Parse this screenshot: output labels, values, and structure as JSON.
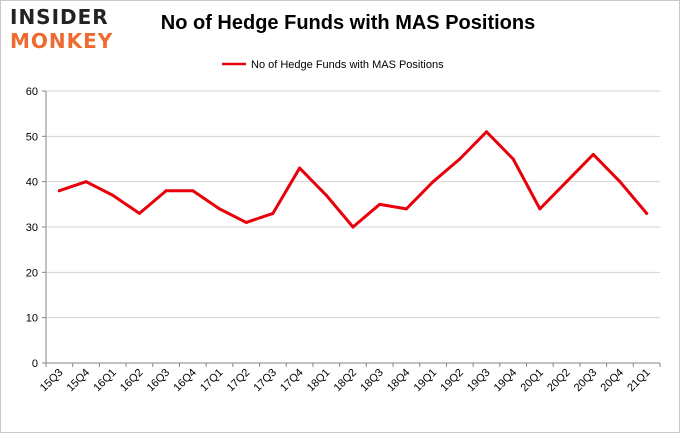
{
  "logo": {
    "line1": "INSIDER",
    "line2": "MONKEY"
  },
  "chart_data": {
    "type": "line",
    "title": "No of Hedge Funds with MAS Positions",
    "xlabel": "",
    "ylabel": "",
    "categories": [
      "15Q3",
      "15Q4",
      "16Q1",
      "16Q2",
      "16Q3",
      "16Q4",
      "17Q1",
      "17Q2",
      "17Q3",
      "17Q4",
      "18Q1",
      "18Q2",
      "18Q3",
      "18Q4",
      "19Q1",
      "19Q2",
      "19Q3",
      "19Q4",
      "20Q1",
      "20Q2",
      "20Q3",
      "20Q4",
      "21Q1"
    ],
    "series": [
      {
        "name": "No of Hedge Funds with MAS Positions",
        "color": "#e8000b",
        "values": [
          38,
          40,
          37,
          33,
          38,
          38,
          34,
          31,
          33,
          43,
          37,
          30,
          35,
          34,
          40,
          45,
          51,
          45,
          34,
          40,
          46,
          40,
          33
        ]
      }
    ],
    "ylim": [
      0,
      60
    ],
    "yticks": [
      0,
      10,
      20,
      30,
      40,
      50,
      60
    ],
    "grid": true,
    "legend_position": "top-center",
    "grid_color": "#d3d3d3"
  }
}
